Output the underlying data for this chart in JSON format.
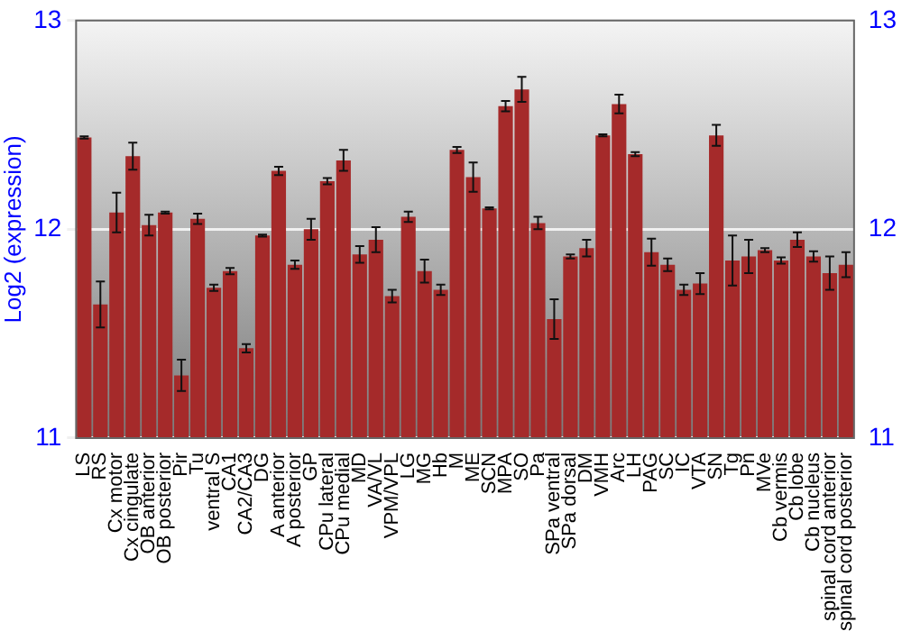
{
  "chart_data": {
    "type": "bar",
    "ylabel": "Log2 (expression)",
    "categories": [
      "LS",
      "RS",
      "Cx motor",
      "Cx cingulate",
      "OB anterior",
      "OB posterior",
      "Pir",
      "Tu",
      "ventral S",
      "CA1",
      "CA2/CA3",
      "DG",
      "A anterior",
      "A posterior",
      "GP",
      "CPu lateral",
      "CPu medial",
      "MD",
      "VA/VL",
      "VPM/VPL",
      "LG",
      "MG",
      "Hb",
      "M",
      "ME",
      "SCN",
      "MPA",
      "SO",
      "Pa",
      "SPa ventral",
      "SPa dorsal",
      "DM",
      "VMH",
      "Arc",
      "LH",
      "PAG",
      "SC",
      "IC",
      "VTA",
      "SN",
      "Tg",
      "Pn",
      "MVe",
      "Cb vermis",
      "Cb lobe",
      "Cb nucleus",
      "spinal cord anterior",
      "spinal cord posterior"
    ],
    "values": [
      12.44,
      11.64,
      12.08,
      12.35,
      12.02,
      12.08,
      11.3,
      12.05,
      11.72,
      11.8,
      11.43,
      11.97,
      12.28,
      11.83,
      12.0,
      12.23,
      12.33,
      11.88,
      11.95,
      11.68,
      12.06,
      11.8,
      11.71,
      12.38,
      12.25,
      12.1,
      12.59,
      12.67,
      12.03,
      11.57,
      11.87,
      11.91,
      12.45,
      12.6,
      12.36,
      11.89,
      11.83,
      11.71,
      11.74,
      12.45,
      11.85,
      11.87,
      11.9,
      11.85,
      11.95,
      11.87,
      11.79,
      11.83
    ],
    "errors": [
      0.005,
      0.11,
      0.095,
      0.065,
      0.05,
      0.005,
      0.075,
      0.025,
      0.015,
      0.015,
      0.02,
      0.005,
      0.02,
      0.02,
      0.05,
      0.015,
      0.05,
      0.04,
      0.06,
      0.03,
      0.025,
      0.055,
      0.025,
      0.015,
      0.07,
      0.005,
      0.025,
      0.06,
      0.03,
      0.095,
      0.01,
      0.04,
      0.005,
      0.045,
      0.01,
      0.065,
      0.03,
      0.025,
      0.05,
      0.05,
      0.12,
      0.08,
      0.01,
      0.015,
      0.035,
      0.025,
      0.08,
      0.06
    ],
    "color": "#a52a2a",
    "ylim": [
      11,
      13
    ],
    "yticks": [
      11,
      12,
      13
    ],
    "y2lim": [
      11,
      13
    ],
    "y2ticks": [
      11,
      12,
      13
    ],
    "grid": "y",
    "legend": false
  }
}
